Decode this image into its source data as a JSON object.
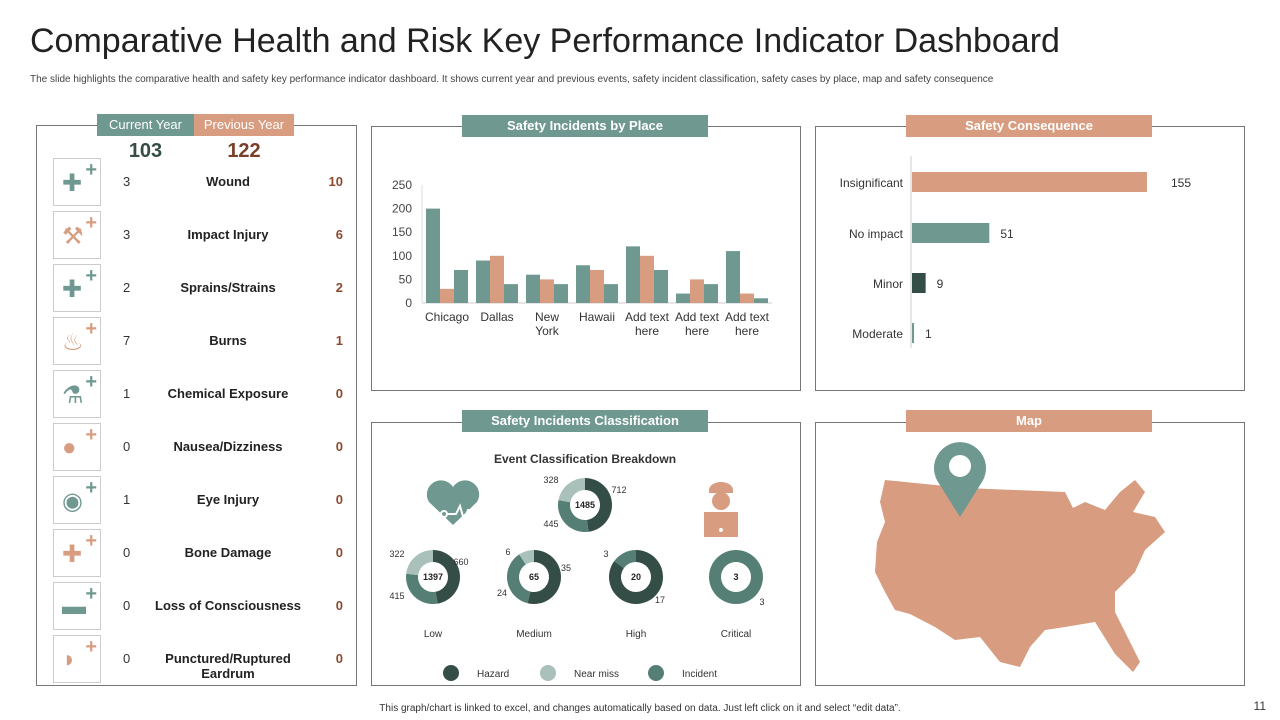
{
  "title": "Comparative Health and Risk Key Performance Indicator Dashboard",
  "subtitle": "The slide highlights the comparative health and safety key performance indicator dashboard. It shows current year and previous events, safety incident classification, safety cases by place, map and safety consequence",
  "colors": {
    "teal": "#6f9990",
    "salmon": "#d89c80",
    "dark": "#344d47",
    "light": "#a9c0bb",
    "incident": "#557e74"
  },
  "summary": {
    "current_label": "Current Year",
    "previous_label": "Previous Year",
    "current_total": "103",
    "previous_total": "122",
    "items": [
      {
        "icon": "bandage-icon",
        "label": "Wound",
        "current": "3",
        "previous": "10"
      },
      {
        "icon": "hammer-icon",
        "label": "Impact Injury",
        "current": "3",
        "previous": "6"
      },
      {
        "icon": "sprain-icon",
        "label": "Sprains/Strains",
        "current": "2",
        "previous": "2"
      },
      {
        "icon": "fire-icon",
        "label": "Burns",
        "current": "7",
        "previous": "1"
      },
      {
        "icon": "flask-icon",
        "label": "Chemical Exposure",
        "current": "1",
        "previous": "0"
      },
      {
        "icon": "person-icon",
        "label": "Nausea/Dizziness",
        "current": "0",
        "previous": "0"
      },
      {
        "icon": "eye-icon",
        "label": "Eye Injury",
        "current": "1",
        "previous": "0"
      },
      {
        "icon": "bone-icon",
        "label": "Bone Damage",
        "current": "0",
        "previous": "0"
      },
      {
        "icon": "bed-icon",
        "label": "Loss of Consciousness",
        "current": "0",
        "previous": "0"
      },
      {
        "icon": "ear-icon",
        "label": "Punctured/Ruptured Eardrum",
        "current": "0",
        "previous": "0"
      }
    ]
  },
  "places_title": "Safety Incidents by Place",
  "consequence_title": "Safety Consequence",
  "classification_title": "Safety Incidents Classification",
  "map_title": "Map",
  "chart_data": [
    {
      "type": "bar",
      "categories": [
        "Chicago",
        "Dallas",
        "New York",
        "Hawaii",
        "Add text here",
        "Add text here",
        "Add text here"
      ],
      "series": [
        {
          "values": [
            200,
            90,
            60,
            80,
            120,
            20,
            110
          ]
        },
        {
          "values": [
            30,
            100,
            50,
            70,
            100,
            50,
            20
          ]
        },
        {
          "values": [
            70,
            40,
            40,
            40,
            70,
            40,
            10
          ]
        }
      ],
      "ylim": [
        0,
        250
      ],
      "yticks": [
        0,
        50,
        100,
        150,
        200,
        250
      ]
    },
    {
      "type": "bar",
      "orientation": "horizontal",
      "categories": [
        "Insignificant",
        "No impact",
        "Minor",
        "Moderate"
      ],
      "values": [
        155,
        51,
        9,
        1
      ],
      "colors": [
        "#d89c80",
        "#6f9990",
        "#344d47",
        "#6f9990"
      ]
    },
    {
      "type": "pie",
      "title": "Event Classification Breakdown",
      "legend": [
        "Hazard",
        "Near miss",
        "Incident"
      ],
      "donuts": [
        {
          "name": "",
          "total": "1485",
          "hazard": 712,
          "near_miss": 328,
          "incident": 445
        },
        {
          "name": "Low",
          "total": "1397",
          "hazard": 660,
          "near_miss": 322,
          "incident": 415
        },
        {
          "name": "Medium",
          "total": "65",
          "hazard": 35,
          "near_miss": 6,
          "incident": 24
        },
        {
          "name": "High",
          "total": "20",
          "hazard": 17,
          "near_miss": 0,
          "incident": 3
        },
        {
          "name": "Critical",
          "total": "3",
          "hazard": 0,
          "near_miss": 0,
          "incident": 3
        }
      ]
    }
  ],
  "footer": "This graph/chart is linked to excel, and changes automatically based on data. Just left click on it and select “edit data”.",
  "page_number": "11"
}
